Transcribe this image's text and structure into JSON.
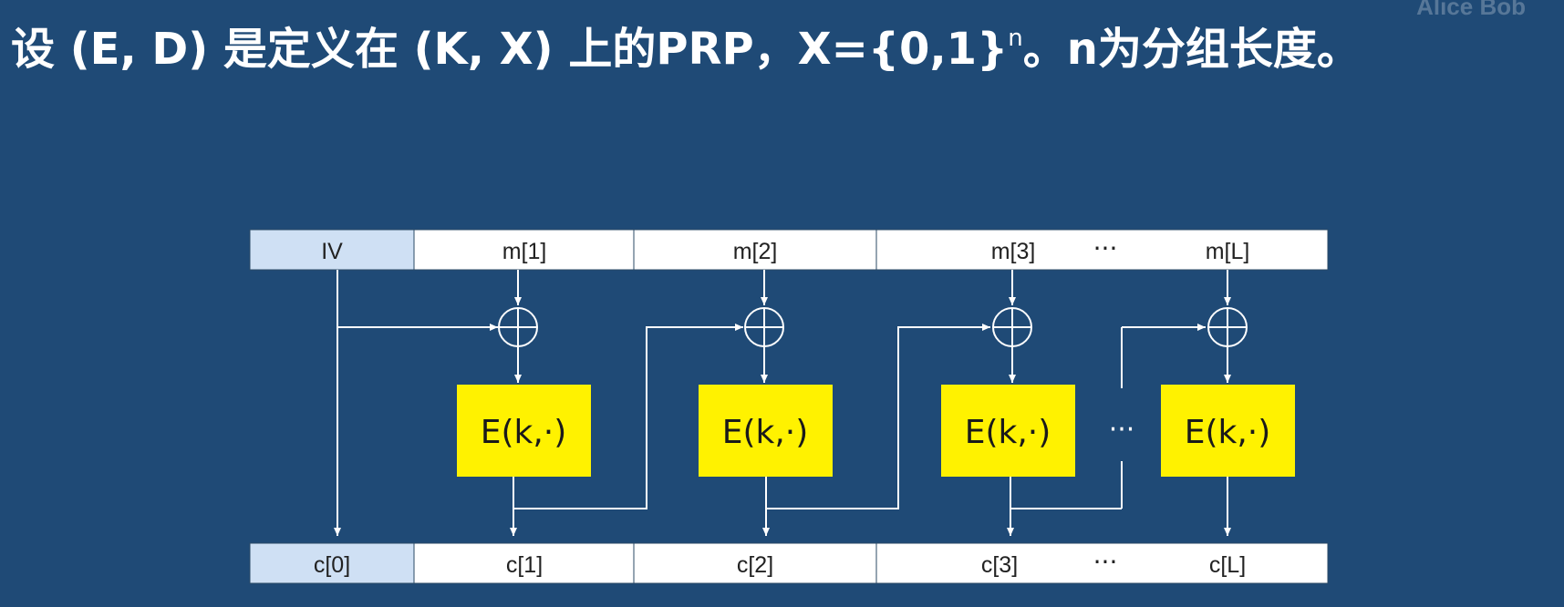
{
  "title": {
    "main": "设 (E, D) 是定义在 (K, X) 上的PRP，X={0,1}",
    "sup": "n",
    "rest": "。n为分组长度。"
  },
  "watermark": "Alice Bob",
  "top_row": [
    "IV",
    "m[1]",
    "m[2]",
    "m[3]",
    "m[L]"
  ],
  "bottom_row": [
    "c[0]",
    "c[1]",
    "c[2]",
    "c[3]",
    "c[L]"
  ],
  "block_label": "E(k,·)",
  "ellipsis": "···",
  "colors": {
    "background": "#1f4a76",
    "iv_cell": "#cfe0f4",
    "cell": "#ffffff",
    "block": "#fff200",
    "line": "#ffffff"
  }
}
